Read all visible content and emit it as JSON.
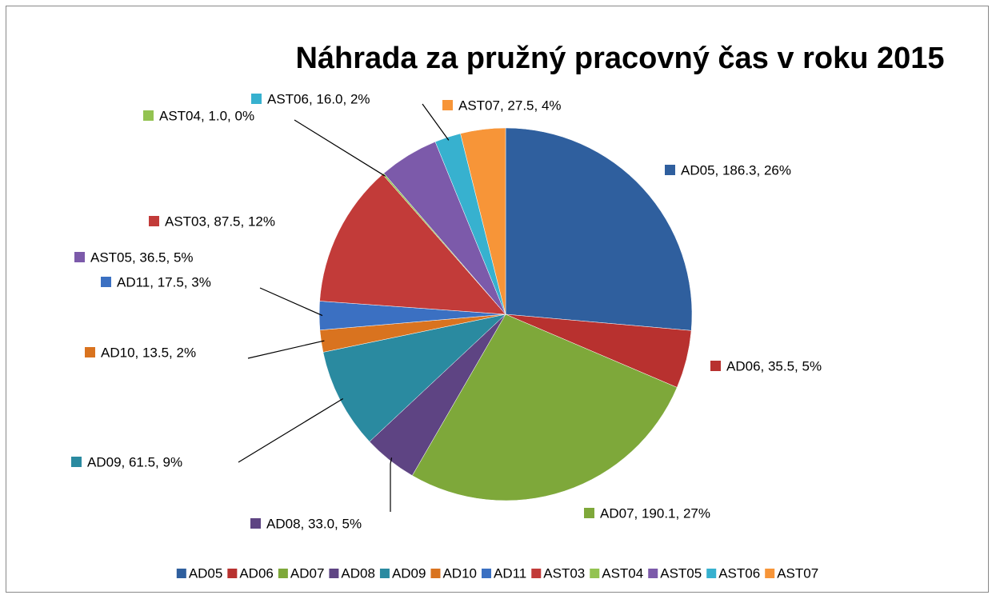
{
  "chart_data": {
    "type": "pie",
    "title": "Náhrada za pružný pracovný čas v roku 2015",
    "categories": [
      "AD05",
      "AD06",
      "AD07",
      "AD08",
      "AD09",
      "AD10",
      "AD11",
      "AST03",
      "AST04",
      "AST05",
      "AST06",
      "AST07"
    ],
    "values": [
      186.3,
      35.5,
      190.1,
      33.0,
      61.5,
      13.5,
      17.5,
      87.5,
      1.0,
      36.5,
      16.0,
      27.5
    ],
    "value_labels": [
      "AD05, 186.3, 26%",
      "AD06, 35.5, 5%",
      "AD07, 190.1, 27%",
      "AD08, 33.0, 5%",
      "AD09, 61.5, 9%",
      "AD10, 13.5, 2%",
      "AD11, 17.5, 3%",
      "AST03, 87.5, 12%",
      "AST04, 1.0, 0%",
      "AST05, 36.5, 5%",
      "AST06, 16.0, 2%",
      "AST07, 27.5, 4%"
    ],
    "colors": [
      "#2f5f9e",
      "#b8312f",
      "#7ea83a",
      "#5e4483",
      "#2a8aa0",
      "#d9731f",
      "#3b70c2",
      "#c23b39",
      "#93c351",
      "#7c5aaa",
      "#37b1cf",
      "#f79538"
    ],
    "legend": "bottom"
  }
}
